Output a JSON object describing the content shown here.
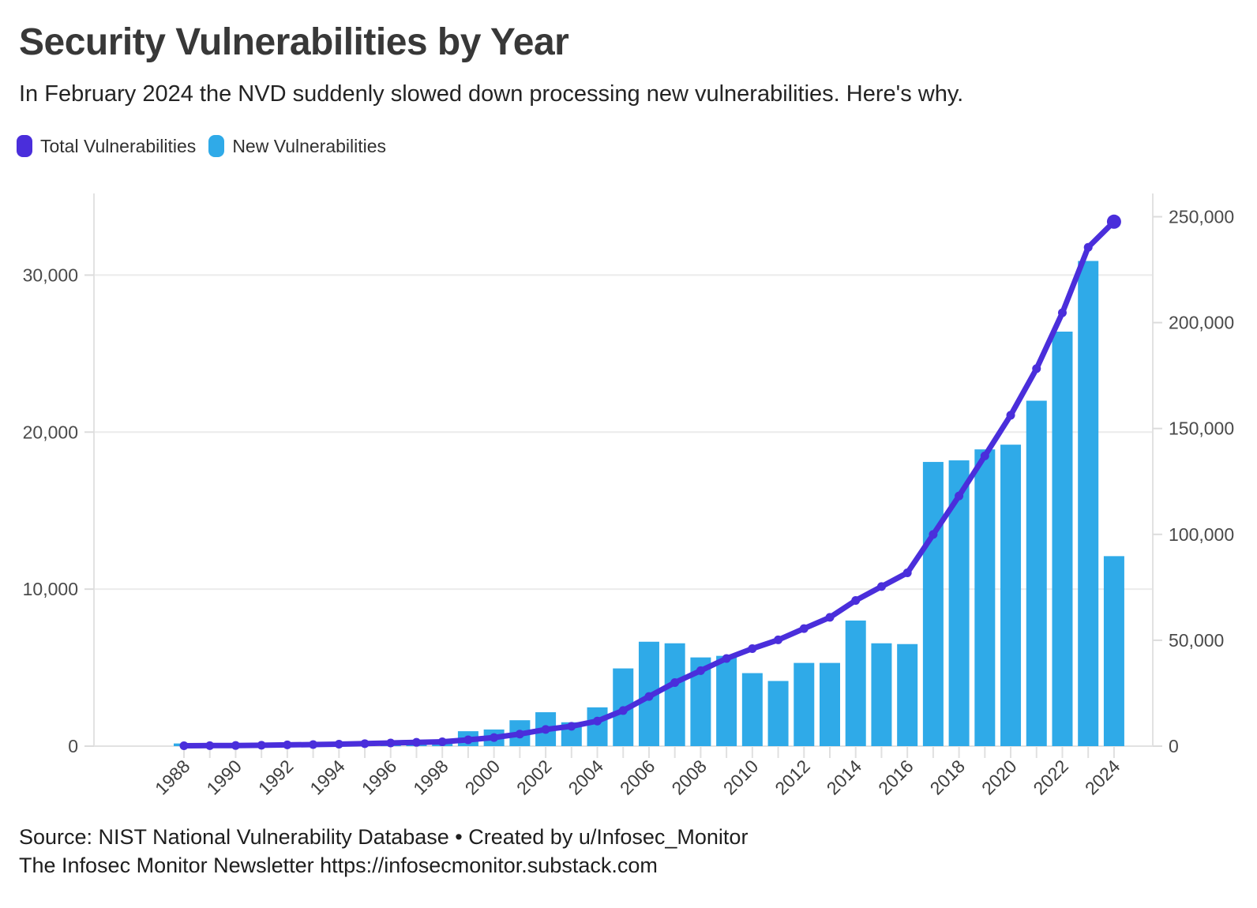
{
  "header": {
    "title": "Security Vulnerabilities by Year",
    "subtitle": "In February 2024 the NVD suddenly slowed down processing new vulnerabilities. Here's why."
  },
  "legend": [
    {
      "label": "Total Vulnerabilities",
      "color": "#4A2EDB"
    },
    {
      "label": "New Vulnerabilities",
      "color": "#2FAAE8"
    }
  ],
  "footer": {
    "line1": "Source: NIST National Vulnerability Database • Created by u/Infosec_Monitor",
    "line2": "The Infosec Monitor Newsletter https://infosecmonitor.substack.com"
  },
  "chart_data": {
    "type": "bar+line dual-axis combo",
    "years": [
      1988,
      1989,
      1990,
      1991,
      1992,
      1993,
      1994,
      1995,
      1996,
      1997,
      1998,
      1999,
      2000,
      2001,
      2002,
      2003,
      2004,
      2005,
      2006,
      2007,
      2008,
      2009,
      2010,
      2011,
      2012,
      2013,
      2014,
      2015,
      2016,
      2017,
      2018,
      2019,
      2020,
      2021,
      2022,
      2023,
      2024
    ],
    "series": [
      {
        "name": "New Vulnerabilities",
        "type": "bar",
        "axis": "left",
        "color": "#2FAAE8",
        "values": [
          170,
          75,
          60,
          110,
          180,
          160,
          180,
          250,
          310,
          300,
          250,
          950,
          1060,
          1650,
          2160,
          1520,
          2470,
          4950,
          6650,
          6550,
          5650,
          5750,
          4650,
          4150,
          5300,
          5300,
          8000,
          6550,
          6500,
          18100,
          18200,
          18900,
          19200,
          22000,
          26400,
          30900,
          12100
        ]
      },
      {
        "name": "Total Vulnerabilities",
        "type": "line",
        "axis": "right",
        "color": "#4A2EDB",
        "values": [
          170,
          245,
          305,
          415,
          595,
          755,
          935,
          1185,
          1495,
          1795,
          2045,
          2995,
          4055,
          5705,
          7865,
          9385,
          11855,
          16805,
          23455,
          30005,
          35655,
          41405,
          46055,
          50205,
          55505,
          60805,
          68805,
          75355,
          81855,
          99955,
          118155,
          137055,
          156255,
          178255,
          204655,
          235555,
          247655
        ]
      }
    ],
    "left_axis": {
      "applies_to": "New Vulnerabilities (bars)",
      "ticks": [
        0,
        10000,
        20000,
        30000
      ],
      "tick_labels": [
        "0",
        "10,000",
        "20,000",
        "30,000"
      ],
      "range": [
        0,
        35200
      ]
    },
    "right_axis": {
      "applies_to": "Total Vulnerabilities (line)",
      "ticks": [
        0,
        50000,
        100000,
        150000,
        200000,
        250000
      ],
      "tick_labels": [
        "0",
        "50,000",
        "100,000",
        "150,000",
        "200,000",
        "250,000"
      ],
      "range": [
        0,
        261000
      ]
    },
    "x_axis": {
      "labeled_years": [
        "1988",
        "1990",
        "1992",
        "1994",
        "1996",
        "1998",
        "2000",
        "2002",
        "2004",
        "2006",
        "2008",
        "2010",
        "2012",
        "2014",
        "2016",
        "2018",
        "2020",
        "2022",
        "2024"
      ],
      "tick_every_year": true,
      "label_rotation_deg": -45
    },
    "grid": "horizontal gridlines at left-axis ticks only",
    "legend_position": "top-left",
    "notes": "Line is cumulative total of yearly bars; final 2024 point drawn with larger marker"
  }
}
